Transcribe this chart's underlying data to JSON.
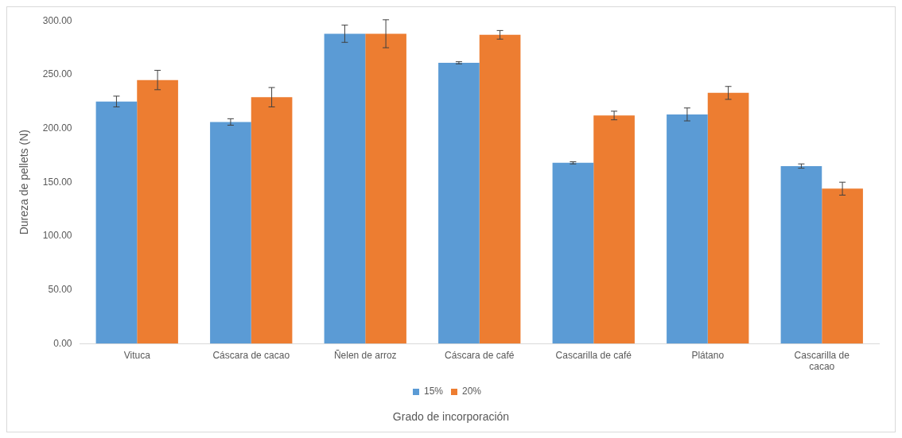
{
  "chart_data": {
    "type": "bar",
    "xlabel": "Grado de incorporación",
    "ylabel": "Dureza de pellets (N)",
    "categories": [
      "Vituca",
      "Cáscara de cacao",
      "Ñelen de arroz",
      "Cáscara de café",
      "Cascarilla de café",
      "Plátano",
      "Cascarilla de cacao"
    ],
    "series": [
      {
        "name": "15%",
        "color": "#5b9bd5",
        "values": [
          225,
          206,
          288,
          261,
          168,
          213,
          165
        ],
        "errors": [
          5,
          3,
          8,
          1,
          1,
          6,
          2
        ]
      },
      {
        "name": "20%",
        "color": "#ed7d31",
        "values": [
          245,
          229,
          288,
          287,
          212,
          233,
          144
        ],
        "errors": [
          9,
          9,
          13,
          4,
          4,
          6,
          6
        ]
      }
    ],
    "ylim": [
      0,
      300
    ],
    "yticks": [
      {
        "value": 0,
        "label": "0.00"
      },
      {
        "value": 50,
        "label": "50.00"
      },
      {
        "value": 100,
        "label": "100.00"
      },
      {
        "value": 150,
        "label": "150.00"
      },
      {
        "value": 200,
        "label": "200.00"
      },
      {
        "value": 250,
        "label": "250.00"
      },
      {
        "value": 300,
        "label": "300.00"
      }
    ],
    "legend": "bottom"
  }
}
